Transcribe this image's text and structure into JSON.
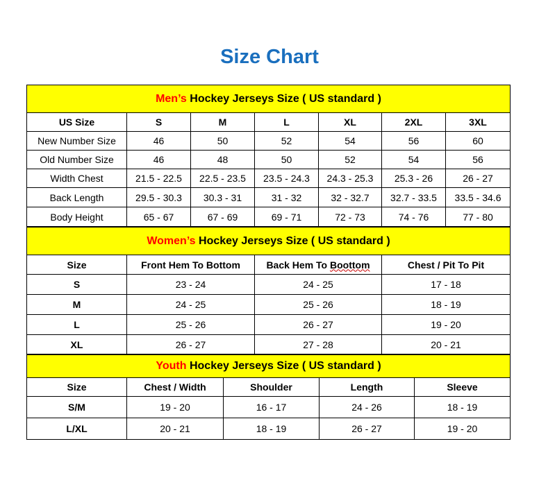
{
  "title": "Size Chart",
  "colors": {
    "title": "#1a6fbe",
    "header_bg": "#ffff00",
    "accent_red": "#ff0000"
  },
  "men": {
    "header_prefix": "Men’s",
    "header_rest": " Hockey Jerseys Size ( US standard )",
    "columns": [
      "US Size",
      "S",
      "M",
      "L",
      "XL",
      "2XL",
      "3XL"
    ],
    "rows": [
      [
        "New Number Size",
        "46",
        "50",
        "52",
        "54",
        "56",
        "60"
      ],
      [
        "Old Number Size",
        "46",
        "48",
        "50",
        "52",
        "54",
        "56"
      ],
      [
        "Width Chest",
        "21.5 - 22.5",
        "22.5 - 23.5",
        "23.5 - 24.3",
        "24.3 - 25.3",
        "25.3 - 26",
        "26 - 27"
      ],
      [
        "Back Length",
        "29.5 - 30.3",
        "30.3 - 31",
        "31 - 32",
        "32 - 32.7",
        "32.7 - 33.5",
        "33.5 - 34.6"
      ],
      [
        "Body Height",
        "65 - 67",
        "67 - 69",
        "69 - 71",
        "72 - 73",
        "74 - 76",
        "77 - 80"
      ]
    ]
  },
  "women": {
    "header_prefix": "Women’s",
    "header_rest": " Hockey Jerseys Size ( US standard )",
    "columns": [
      "Size",
      "Front Hem To Bottom",
      "Back Hem To",
      "Chest / Pit To Pit"
    ],
    "misspelled_word": "Boottom",
    "rows": [
      [
        "S",
        "23 - 24",
        "24 - 25",
        "17 - 18"
      ],
      [
        "M",
        "24 - 25",
        "25 - 26",
        "18 - 19"
      ],
      [
        "L",
        "25 - 26",
        "26 - 27",
        "19 - 20"
      ],
      [
        "XL",
        "26 - 27",
        "27 - 28",
        "20 - 21"
      ]
    ]
  },
  "youth": {
    "header_prefix": "Youth",
    "header_rest": " Hockey Jerseys Size ( US standard )",
    "columns": [
      "Size",
      "Chest / Width",
      "Shoulder",
      "Length",
      "Sleeve"
    ],
    "rows": [
      [
        "S/M",
        "19 - 20",
        "16 - 17",
        "24 - 26",
        "18 - 19"
      ],
      [
        "L/XL",
        "20 - 21",
        "18 - 19",
        "26 - 27",
        "19 - 20"
      ]
    ]
  }
}
